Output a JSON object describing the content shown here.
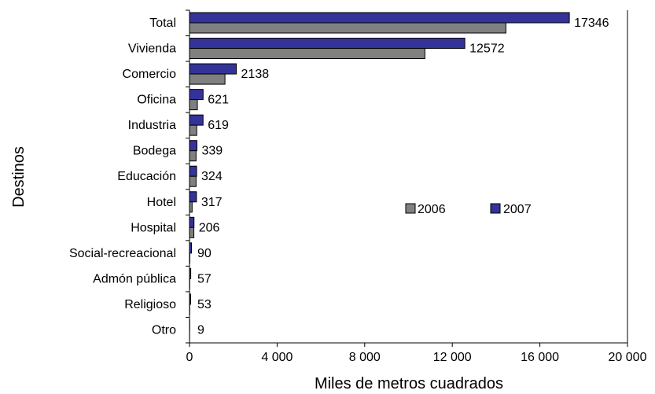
{
  "chart_data": {
    "type": "bar",
    "orientation": "horizontal",
    "title": "",
    "xlabel": "Miles de metros cuadrados",
    "ylabel": "Destinos",
    "xlim": [
      0,
      20000
    ],
    "xticks": [
      0,
      4000,
      8000,
      12000,
      16000,
      20000
    ],
    "xtick_labels": [
      "0",
      "4 000",
      "8 000",
      "12 000",
      "16 000",
      "20 000"
    ],
    "grid": false,
    "legend_position": "center-right",
    "categories": [
      "Total",
      "Vivienda",
      "Comercio",
      "Oficina",
      "Industria",
      "Bodega",
      "Educación",
      "Hotel",
      "Hospital",
      "Social-recreacional",
      "Admón pública",
      "Religioso",
      "Otro"
    ],
    "series": [
      {
        "name": "2006",
        "color": "#808080",
        "values": [
          14450,
          10750,
          1620,
          360,
          330,
          300,
          300,
          120,
          200,
          15,
          10,
          10,
          5
        ]
      },
      {
        "name": "2007",
        "color": "#333399",
        "values": [
          17346,
          12572,
          2138,
          621,
          619,
          339,
          324,
          317,
          206,
          90,
          57,
          53,
          9
        ]
      }
    ],
    "data_labels": [
      "17346",
      "12572",
      "2138",
      "621",
      "619",
      "339",
      "324",
      "317",
      "206",
      "90",
      "57",
      "53",
      "9"
    ],
    "legend": [
      "2006",
      "2007"
    ]
  }
}
